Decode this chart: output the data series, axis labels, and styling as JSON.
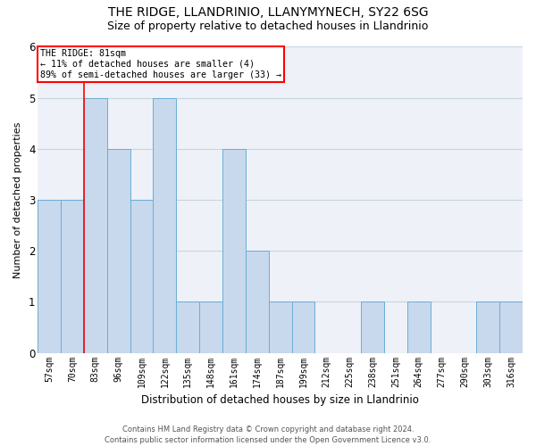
{
  "title": "THE RIDGE, LLANDRINIO, LLANYMYNECH, SY22 6SG",
  "subtitle": "Size of property relative to detached houses in Llandrinio",
  "xlabel": "Distribution of detached houses by size in Llandrinio",
  "ylabel": "Number of detached properties",
  "categories": [
    "57sqm",
    "70sqm",
    "83sqm",
    "96sqm",
    "109sqm",
    "122sqm",
    "135sqm",
    "148sqm",
    "161sqm",
    "174sqm",
    "187sqm",
    "199sqm",
    "212sqm",
    "225sqm",
    "238sqm",
    "251sqm",
    "264sqm",
    "277sqm",
    "290sqm",
    "303sqm",
    "316sqm"
  ],
  "values": [
    3,
    3,
    5,
    4,
    3,
    5,
    1,
    1,
    4,
    2,
    1,
    1,
    0,
    0,
    1,
    0,
    1,
    0,
    0,
    1,
    1
  ],
  "bar_color": "#c8d8ed",
  "bar_edge_color": "#6aaed6",
  "vline_x": 1.5,
  "vline_color": "red",
  "annotation_text": "THE RIDGE: 81sqm\n← 11% of detached houses are smaller (4)\n89% of semi-detached houses are larger (33) →",
  "annotation_box_color": "white",
  "annotation_box_edge_color": "red",
  "ylim": [
    0,
    6.0
  ],
  "yticks": [
    0,
    1,
    2,
    3,
    4,
    5,
    6
  ],
  "footer": "Contains HM Land Registry data © Crown copyright and database right 2024.\nContains public sector information licensed under the Open Government Licence v3.0.",
  "bg_color": "#eef2f8",
  "grid_color": "#c8d4e0",
  "title_fontsize": 10,
  "subtitle_fontsize": 9,
  "axis_label_fontsize": 8,
  "tick_fontsize": 7,
  "footer_fontsize": 6
}
